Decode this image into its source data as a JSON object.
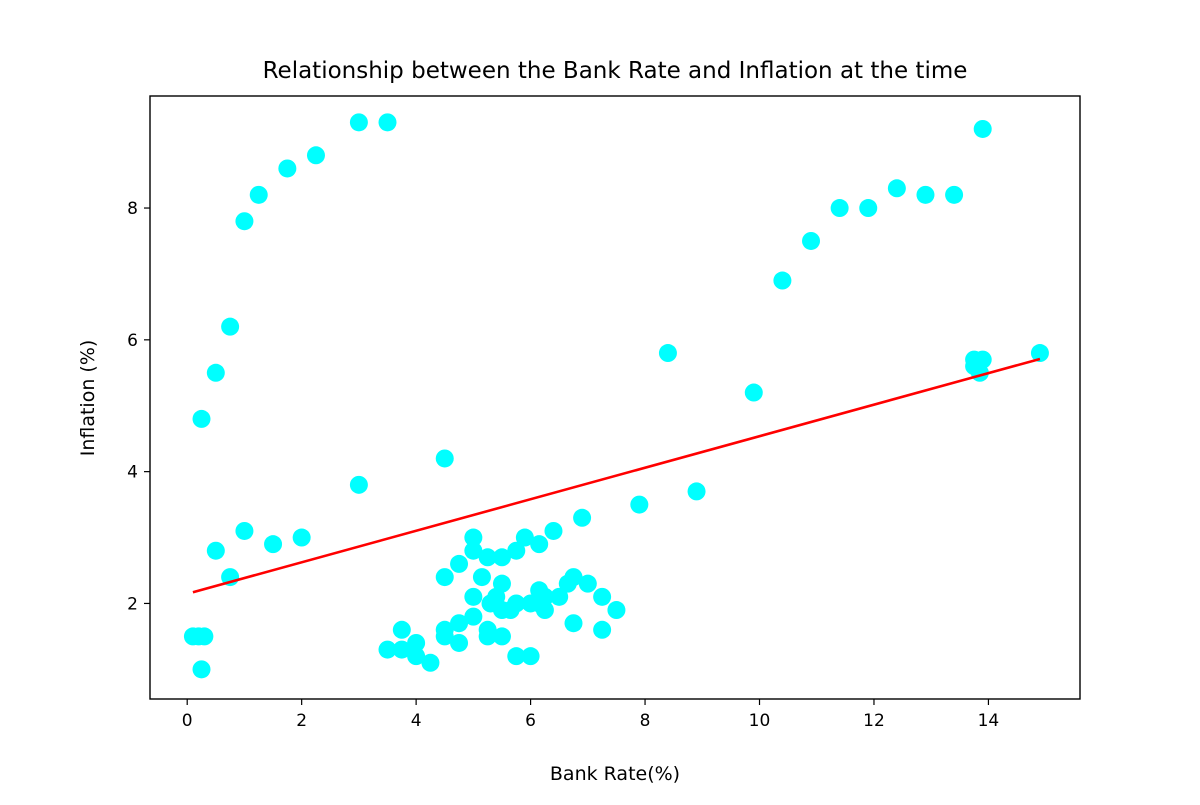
{
  "chart_data": {
    "type": "scatter",
    "title": "Relationship between the Bank Rate and Inflation at the time",
    "xlabel": "Bank Rate(%)",
    "ylabel": "Inflation (%)",
    "xlim": [
      -0.65,
      15.6
    ],
    "ylim": [
      0.55,
      9.7
    ],
    "xticks": [
      "0",
      "2",
      "4",
      "6",
      "8",
      "10",
      "12",
      "14"
    ],
    "yticks": [
      "2",
      "4",
      "6",
      "8"
    ],
    "grid": false,
    "legend": "none",
    "marker_color": "#00ffff",
    "line_color": "#ff0000",
    "fit_line": {
      "x": [
        0.1,
        14.9
      ],
      "y": [
        2.17,
        5.71
      ]
    },
    "points": [
      [
        0.25,
        4.8
      ],
      [
        0.5,
        5.5
      ],
      [
        0.75,
        6.2
      ],
      [
        1.0,
        7.8
      ],
      [
        1.25,
        8.2
      ],
      [
        1.75,
        8.6
      ],
      [
        2.25,
        8.8
      ],
      [
        3.0,
        9.3
      ],
      [
        3.5,
        9.3
      ],
      [
        0.1,
        1.5
      ],
      [
        0.2,
        1.5
      ],
      [
        0.3,
        1.5
      ],
      [
        0.25,
        1.0
      ],
      [
        0.5,
        2.8
      ],
      [
        0.75,
        2.4
      ],
      [
        1.0,
        3.1
      ],
      [
        1.5,
        2.9
      ],
      [
        2.0,
        3.0
      ],
      [
        3.0,
        3.8
      ],
      [
        3.5,
        1.3
      ],
      [
        3.75,
        1.3
      ],
      [
        3.75,
        1.6
      ],
      [
        4.0,
        1.2
      ],
      [
        4.0,
        1.4
      ],
      [
        4.25,
        1.1
      ],
      [
        4.5,
        1.5
      ],
      [
        4.5,
        1.6
      ],
      [
        4.75,
        1.4
      ],
      [
        4.75,
        1.7
      ],
      [
        5.0,
        1.8
      ],
      [
        5.25,
        1.5
      ],
      [
        5.25,
        1.6
      ],
      [
        5.5,
        1.5
      ],
      [
        5.75,
        1.2
      ],
      [
        6.0,
        1.2
      ],
      [
        4.5,
        2.4
      ],
      [
        4.5,
        4.2
      ],
      [
        4.75,
        2.6
      ],
      [
        5.0,
        2.1
      ],
      [
        5.0,
        2.8
      ],
      [
        5.0,
        3.0
      ],
      [
        5.15,
        2.4
      ],
      [
        5.25,
        2.7
      ],
      [
        5.3,
        2.0
      ],
      [
        5.4,
        2.1
      ],
      [
        5.5,
        1.9
      ],
      [
        5.5,
        2.3
      ],
      [
        5.5,
        2.7
      ],
      [
        5.65,
        1.9
      ],
      [
        5.75,
        2.0
      ],
      [
        5.75,
        2.8
      ],
      [
        5.9,
        3.0
      ],
      [
        6.0,
        2.0
      ],
      [
        6.15,
        2.0
      ],
      [
        6.15,
        2.2
      ],
      [
        6.15,
        2.9
      ],
      [
        6.25,
        1.9
      ],
      [
        6.25,
        2.1
      ],
      [
        6.4,
        3.1
      ],
      [
        6.5,
        2.1
      ],
      [
        6.65,
        2.3
      ],
      [
        6.75,
        1.7
      ],
      [
        6.75,
        2.4
      ],
      [
        6.9,
        3.3
      ],
      [
        7.0,
        2.3
      ],
      [
        7.25,
        1.6
      ],
      [
        7.25,
        2.1
      ],
      [
        7.5,
        1.9
      ],
      [
        7.9,
        3.5
      ],
      [
        8.4,
        5.8
      ],
      [
        8.9,
        3.7
      ],
      [
        9.9,
        5.2
      ],
      [
        10.4,
        6.9
      ],
      [
        10.9,
        7.5
      ],
      [
        11.4,
        8.0
      ],
      [
        11.9,
        8.0
      ],
      [
        12.4,
        8.3
      ],
      [
        12.9,
        8.2
      ],
      [
        13.4,
        8.2
      ],
      [
        13.75,
        5.6
      ],
      [
        13.75,
        5.7
      ],
      [
        13.85,
        5.5
      ],
      [
        13.9,
        5.7
      ],
      [
        13.9,
        9.2
      ],
      [
        14.9,
        5.8
      ]
    ]
  }
}
